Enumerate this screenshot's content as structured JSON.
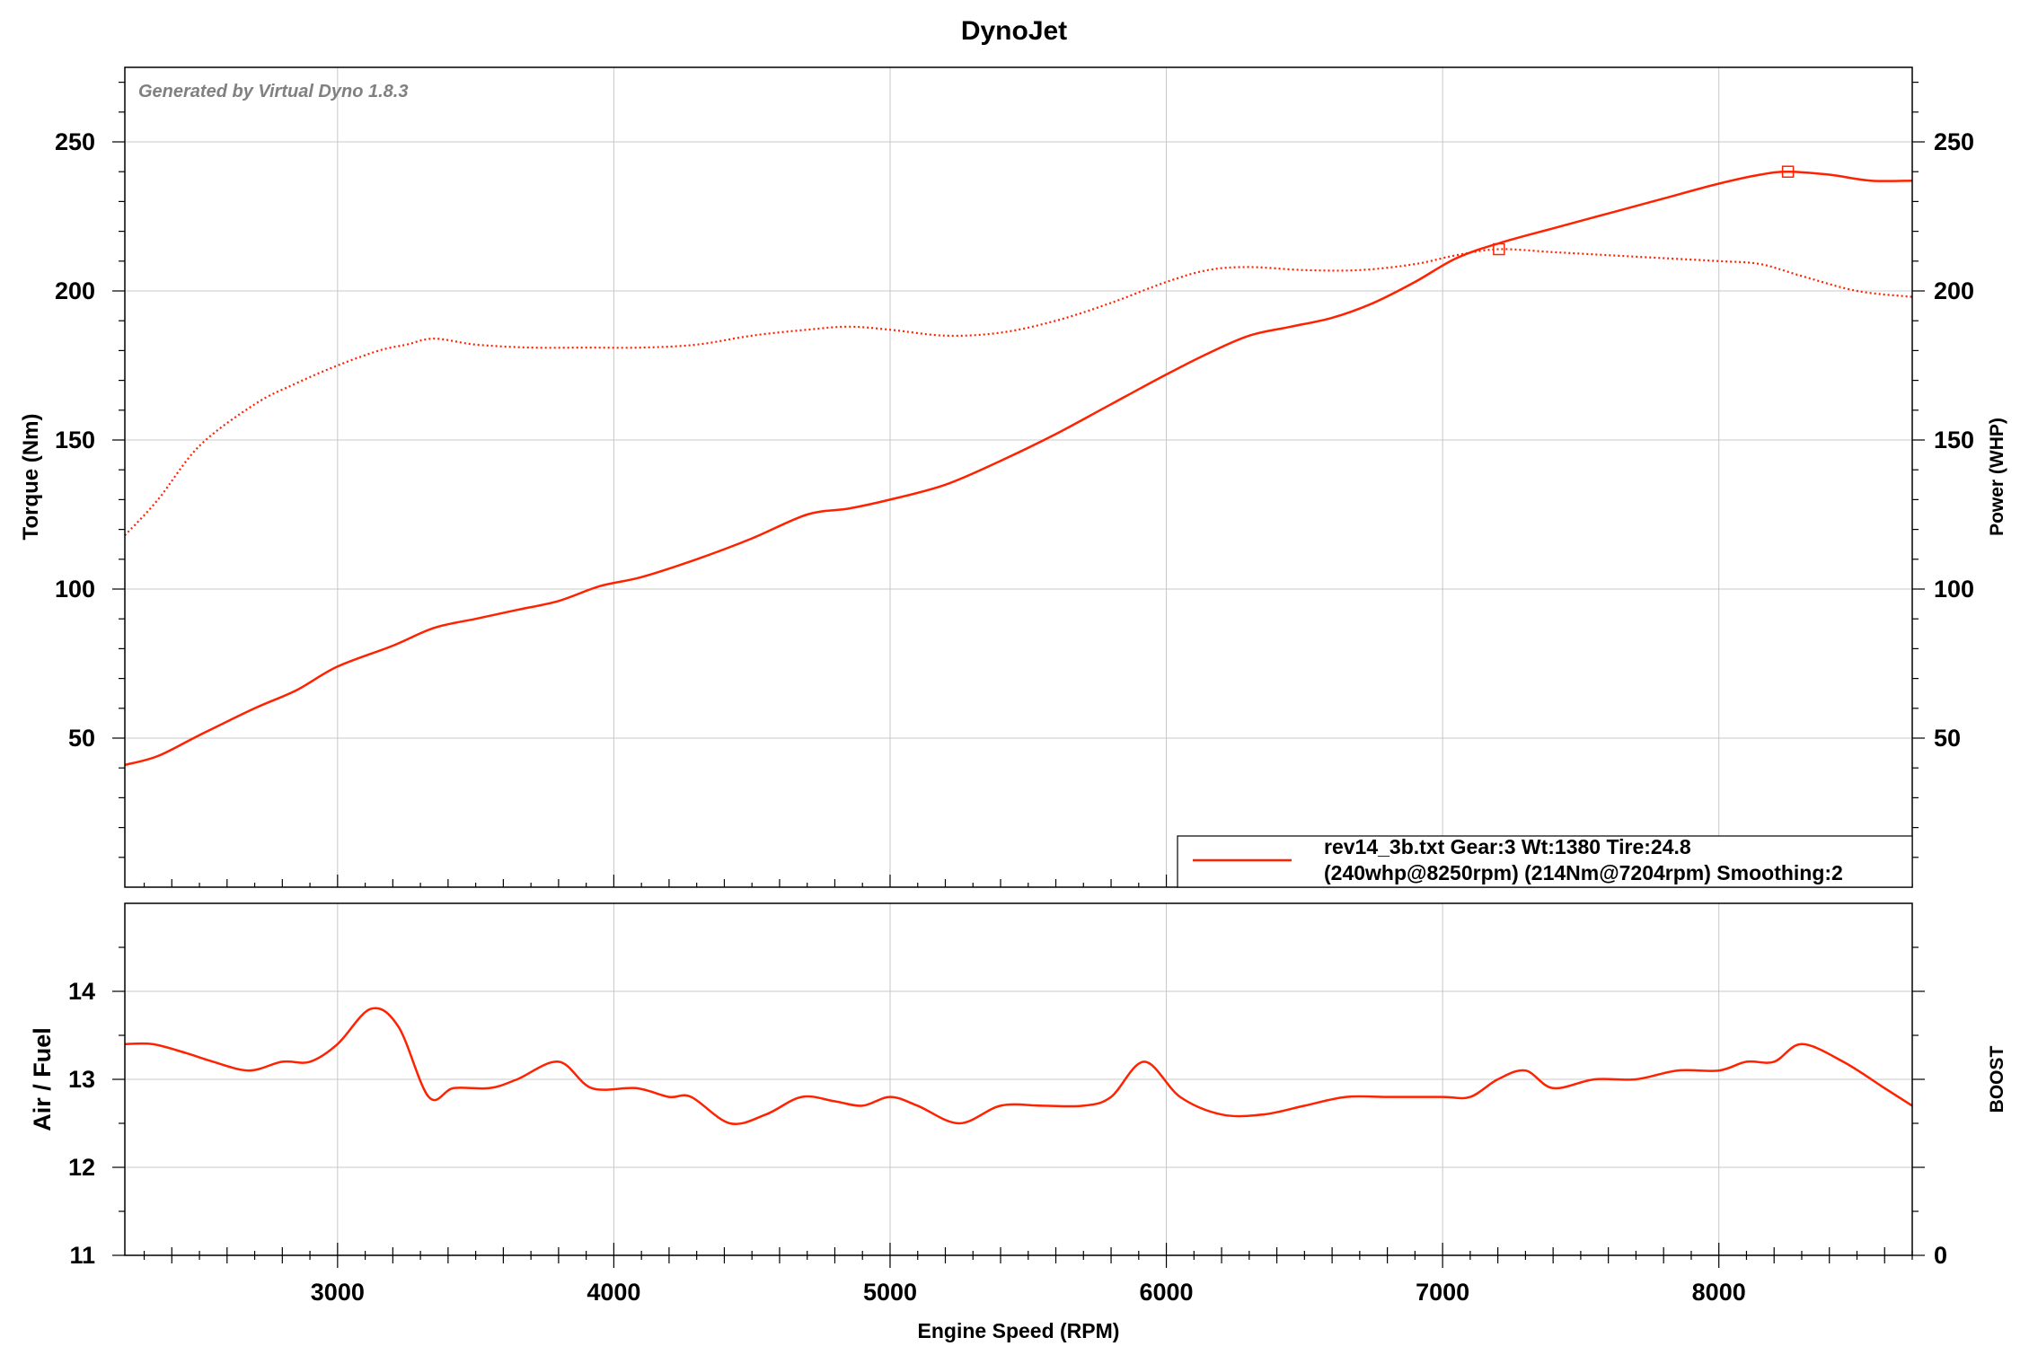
{
  "chart_data": [
    {
      "type": "line",
      "title": "DynoJet",
      "watermark": "Generated by Virtual Dyno 1.8.3",
      "xlabel": "Engine Speed (RPM)",
      "ylabel": "Torque (Nm)",
      "y2label": "Power (WHP)",
      "xlim": [
        2230,
        8700
      ],
      "ylim": [
        0,
        275
      ],
      "y2lim": [
        0,
        275
      ],
      "x_ticks": [
        3000,
        4000,
        5000,
        6000,
        7000,
        8000
      ],
      "y_ticks": [
        50,
        100,
        150,
        200,
        250
      ],
      "y2_ticks": [
        50,
        100,
        150,
        200,
        250
      ],
      "grid": true,
      "legend": {
        "placement": "bottom-right",
        "line1": "rev14_3b.txt Gear:3 Wt:1380 Tire:24.8",
        "line2": "(240whp@8250rpm)  (214Nm@7204rpm)  Smoothing:2"
      },
      "series": [
        {
          "name": "rev14_3b.txt Gear:3 Wt:1380 Tire:24.8",
          "style": "solid",
          "axis": "right",
          "color": "#ff2200",
          "x": [
            2230,
            2350,
            2500,
            2700,
            2850,
            3000,
            3200,
            3350,
            3500,
            3650,
            3800,
            3950,
            4100,
            4300,
            4500,
            4700,
            4850,
            5000,
            5200,
            5400,
            5600,
            5800,
            6000,
            6150,
            6300,
            6450,
            6600,
            6750,
            6900,
            7050,
            7204,
            7400,
            7600,
            7800,
            8000,
            8150,
            8250,
            8400,
            8550,
            8700
          ],
          "values": [
            41,
            44,
            51,
            60,
            66,
            74,
            81,
            87,
            90,
            93,
            96,
            101,
            104,
            110,
            117,
            125,
            127,
            130,
            135,
            143,
            152,
            162,
            172,
            179,
            185,
            188,
            191,
            196,
            203,
            211,
            216,
            221,
            226,
            231,
            236,
            239,
            240,
            239,
            237,
            237
          ]
        },
        {
          "style": "dotted",
          "axis": "left",
          "color": "#ff2200",
          "x": [
            2230,
            2350,
            2500,
            2700,
            2850,
            3000,
            3150,
            3250,
            3350,
            3500,
            3700,
            3900,
            4100,
            4300,
            4500,
            4700,
            4850,
            5000,
            5200,
            5400,
            5600,
            5800,
            6000,
            6150,
            6300,
            6500,
            6700,
            6900,
            7050,
            7204,
            7400,
            7600,
            7800,
            8000,
            8150,
            8300,
            8500,
            8700
          ],
          "values": [
            118,
            130,
            148,
            162,
            169,
            175,
            180,
            182,
            184,
            182,
            181,
            181,
            181,
            182,
            185,
            187,
            188,
            187,
            185,
            186,
            190,
            196,
            203,
            207,
            208,
            207,
            207,
            209,
            212,
            214,
            213,
            212,
            211,
            210,
            209,
            205,
            200,
            198
          ]
        },
        {
          "style": "markers",
          "axis": "left",
          "color": "#ff2200",
          "x": [
            7204,
            8250
          ],
          "values": [
            214,
            240
          ]
        }
      ]
    },
    {
      "type": "line",
      "ylabel": "Air / Fuel",
      "y2label": "BOOST",
      "xlim": [
        2230,
        8700
      ],
      "ylim": [
        11,
        15
      ],
      "y_ticks": [
        11,
        12,
        13,
        14
      ],
      "y2_ticks": [
        0
      ],
      "grid": true,
      "series": [
        {
          "color": "#ff2200",
          "x": [
            2230,
            2330,
            2450,
            2550,
            2680,
            2800,
            2900,
            3000,
            3120,
            3220,
            3330,
            3420,
            3550,
            3650,
            3800,
            3920,
            4080,
            4200,
            4280,
            4420,
            4550,
            4680,
            4800,
            4900,
            5000,
            5100,
            5250,
            5400,
            5550,
            5700,
            5800,
            5920,
            6050,
            6200,
            6350,
            6500,
            6650,
            6800,
            7000,
            7100,
            7200,
            7300,
            7400,
            7550,
            7700,
            7850,
            8000,
            8100,
            8200,
            8300,
            8450,
            8600,
            8700
          ],
          "values": [
            13.4,
            13.4,
            13.3,
            13.2,
            13.1,
            13.2,
            13.2,
            13.4,
            13.8,
            13.6,
            12.8,
            12.9,
            12.9,
            13.0,
            13.2,
            12.9,
            12.9,
            12.8,
            12.8,
            12.5,
            12.6,
            12.8,
            12.75,
            12.7,
            12.8,
            12.7,
            12.5,
            12.7,
            12.7,
            12.7,
            12.8,
            13.2,
            12.8,
            12.6,
            12.6,
            12.7,
            12.8,
            12.8,
            12.8,
            12.8,
            13.0,
            13.1,
            12.9,
            13.0,
            13.0,
            13.1,
            13.1,
            13.2,
            13.2,
            13.4,
            13.2,
            12.9,
            12.7
          ]
        }
      ]
    }
  ]
}
